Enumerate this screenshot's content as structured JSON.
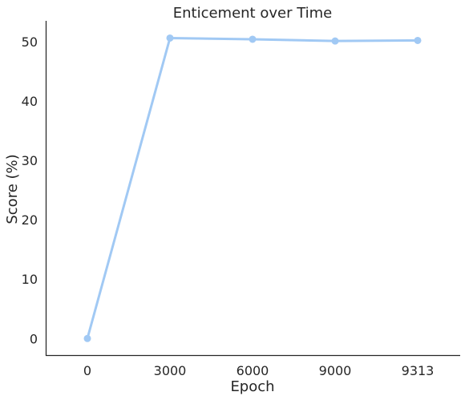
{
  "chart_data": {
    "type": "line",
    "title": "Enticement over Time",
    "xlabel": "Epoch",
    "ylabel": "Score (%)",
    "categories": [
      "0",
      "3000",
      "6000",
      "9000",
      "9313"
    ],
    "yticks": [
      0,
      10,
      20,
      30,
      40,
      50
    ],
    "ylim": [
      -2.8,
      53.5
    ],
    "grid": false,
    "legend": "none",
    "series": [
      {
        "values": [
          0.0,
          50.6,
          50.4,
          50.1,
          50.2
        ],
        "color": "#a1c9f4"
      }
    ]
  }
}
